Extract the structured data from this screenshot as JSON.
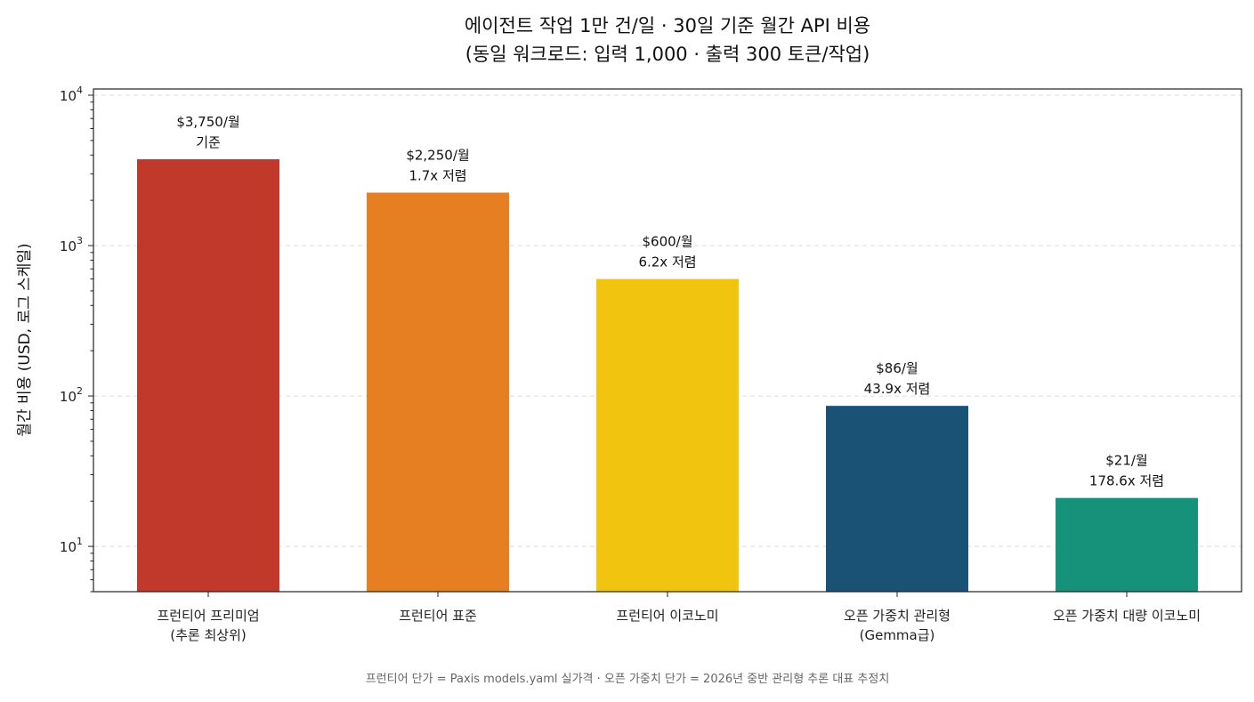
{
  "chart_data": {
    "type": "bar",
    "title": [
      "에이전트 작업 1만 건/일 · 30일 기준 월간 API 비용",
      "(동일 워크로드: 입력 1,000 · 출력 300 토큰/작업)"
    ],
    "ylabel": "월간 비용 (USD, 로그 스케일)",
    "xlabel": "",
    "yscale": "log",
    "ylim": [
      5,
      11000
    ],
    "yticks": [
      10,
      100,
      1000,
      10000
    ],
    "ytick_labels": [
      {
        "base": "10",
        "exp": "1"
      },
      {
        "base": "10",
        "exp": "2"
      },
      {
        "base": "10",
        "exp": "3"
      },
      {
        "base": "10",
        "exp": "4"
      }
    ],
    "grid": true,
    "categories": [
      [
        "프런티어 프리미엄",
        "(추론 최상위)"
      ],
      [
        "프런티어 표준"
      ],
      [
        "프런티어 이코노미"
      ],
      [
        "오픈 가중치 관리형",
        "(Gemma급)"
      ],
      [
        "오픈 가중치 대량 이코노미"
      ]
    ],
    "values": [
      3750,
      2250,
      600,
      86,
      21
    ],
    "colors": [
      "#c0392b",
      "#e67e22",
      "#f1c40f",
      "#1a5276",
      "#16927a"
    ],
    "data_labels": [
      [
        "$3,750/월",
        "기준"
      ],
      [
        "$2,250/월",
        "1.7x 저렴"
      ],
      [
        "$600/월",
        "6.2x 저렴"
      ],
      [
        "$86/월",
        "43.9x 저렴"
      ],
      [
        "$21/월",
        "178.6x 저렴"
      ]
    ],
    "footnote": "프런티어 단가 = Paxis models.yaml 실가격 · 오픈 가중치 단가 = 2026년 중반 관리형 추론 대표 추정치"
  }
}
